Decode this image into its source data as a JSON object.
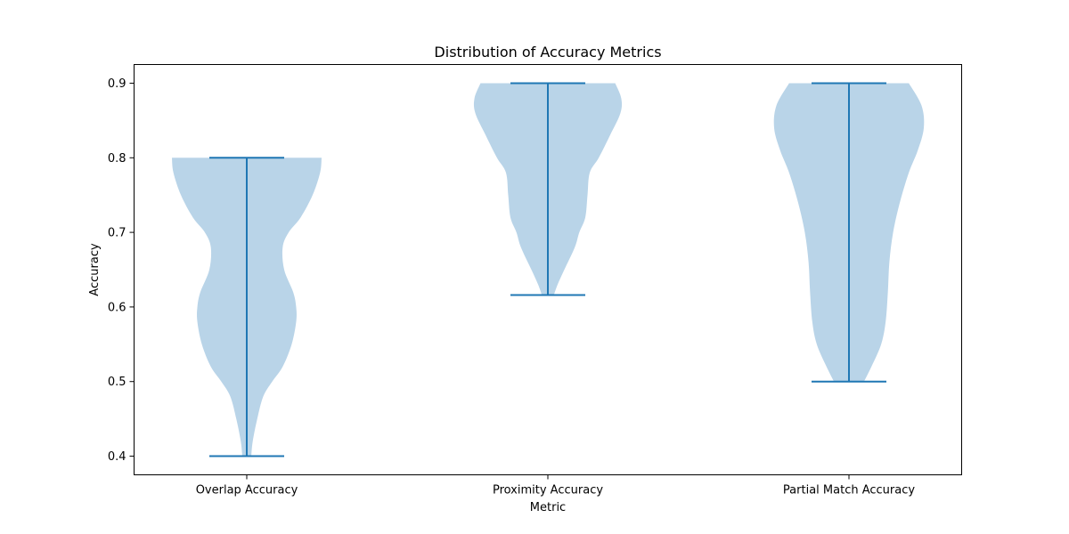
{
  "chart_data": {
    "type": "violin",
    "title": "Distribution of Accuracy Metrics",
    "xlabel": "Metric",
    "ylabel": "Accuracy",
    "ylim": [
      0.375,
      0.925
    ],
    "yticks": [
      0.4,
      0.5,
      0.6,
      0.7,
      0.8,
      0.9
    ],
    "ytick_labels": [
      "0.4",
      "0.5",
      "0.6",
      "0.7",
      "0.8",
      "0.9"
    ],
    "categories": [
      "Overlap Accuracy",
      "Proximity Accuracy",
      "Partial Match Accuracy"
    ],
    "colors": {
      "body": "#b9d4e8",
      "line": "#1f77b4",
      "axis": "#000000"
    },
    "grid": false,
    "violins": [
      {
        "name": "Overlap Accuracy",
        "min": 0.4,
        "max": 0.8,
        "density": [
          [
            0.4,
            0.06
          ],
          [
            0.42,
            0.08
          ],
          [
            0.45,
            0.14
          ],
          [
            0.48,
            0.22
          ],
          [
            0.5,
            0.34
          ],
          [
            0.52,
            0.48
          ],
          [
            0.55,
            0.6
          ],
          [
            0.58,
            0.66
          ],
          [
            0.6,
            0.66
          ],
          [
            0.62,
            0.62
          ],
          [
            0.65,
            0.5
          ],
          [
            0.68,
            0.48
          ],
          [
            0.7,
            0.56
          ],
          [
            0.72,
            0.72
          ],
          [
            0.75,
            0.88
          ],
          [
            0.78,
            0.98
          ],
          [
            0.8,
            1.0
          ]
        ]
      },
      {
        "name": "Proximity Accuracy",
        "min": 0.616,
        "max": 0.9,
        "density": [
          [
            0.616,
            0.08
          ],
          [
            0.63,
            0.13
          ],
          [
            0.65,
            0.22
          ],
          [
            0.68,
            0.36
          ],
          [
            0.7,
            0.42
          ],
          [
            0.72,
            0.5
          ],
          [
            0.75,
            0.53
          ],
          [
            0.78,
            0.56
          ],
          [
            0.8,
            0.68
          ],
          [
            0.83,
            0.83
          ],
          [
            0.86,
            0.97
          ],
          [
            0.88,
            0.98
          ],
          [
            0.9,
            0.9
          ]
        ]
      },
      {
        "name": "Partial Match Accuracy",
        "min": 0.5,
        "max": 0.9,
        "density": [
          [
            0.5,
            0.2
          ],
          [
            0.52,
            0.3
          ],
          [
            0.55,
            0.43
          ],
          [
            0.58,
            0.49
          ],
          [
            0.62,
            0.52
          ],
          [
            0.66,
            0.54
          ],
          [
            0.7,
            0.59
          ],
          [
            0.74,
            0.68
          ],
          [
            0.78,
            0.8
          ],
          [
            0.81,
            0.92
          ],
          [
            0.84,
            1.0
          ],
          [
            0.87,
            0.97
          ],
          [
            0.9,
            0.8
          ]
        ]
      }
    ]
  }
}
